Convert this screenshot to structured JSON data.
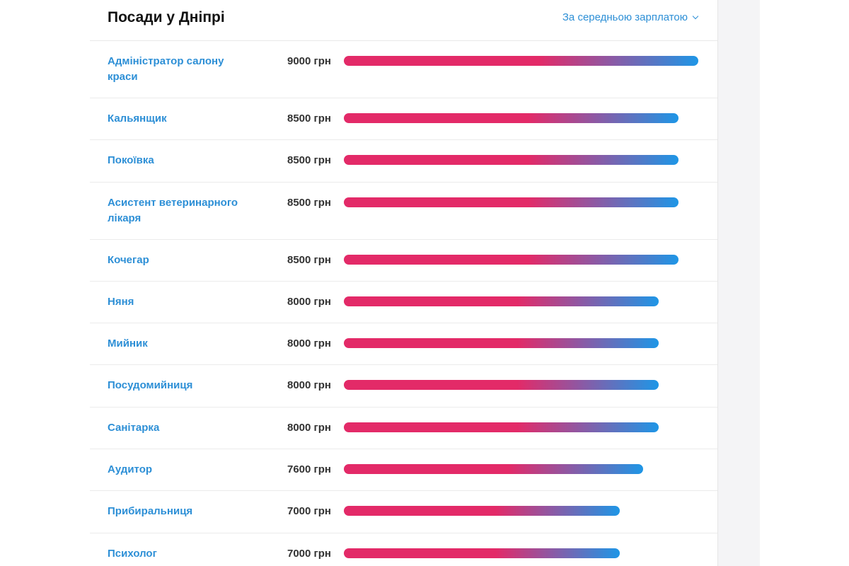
{
  "header": {
    "title": "Посади у Дніпрі",
    "sort_label": "За середньою зарплатою"
  },
  "colors": {
    "link": "#2d8fd6",
    "bar_start": "#e32a68",
    "bar_end": "#1e96e6"
  },
  "max_salary": 9000,
  "rows": [
    {
      "job": "Адміністратор салону краси",
      "salary": "9000 грн",
      "value": 9000
    },
    {
      "job": "Кальянщик",
      "salary": "8500 грн",
      "value": 8500
    },
    {
      "job": "Покоївка",
      "salary": "8500 грн",
      "value": 8500
    },
    {
      "job": "Асистент ветеринарного лікаря",
      "salary": "8500 грн",
      "value": 8500
    },
    {
      "job": "Кочегар",
      "salary": "8500 грн",
      "value": 8500
    },
    {
      "job": "Няня",
      "salary": "8000 грн",
      "value": 8000
    },
    {
      "job": "Мийник",
      "salary": "8000 грн",
      "value": 8000
    },
    {
      "job": "Посудомийниця",
      "salary": "8000 грн",
      "value": 8000
    },
    {
      "job": "Санітарка",
      "salary": "8000 грн",
      "value": 8000
    },
    {
      "job": "Аудитор",
      "salary": "7600 грн",
      "value": 7600
    },
    {
      "job": "Прибиральниця",
      "salary": "7000 грн",
      "value": 7000
    },
    {
      "job": "Психолог",
      "salary": "7000 грн",
      "value": 7000
    }
  ]
}
